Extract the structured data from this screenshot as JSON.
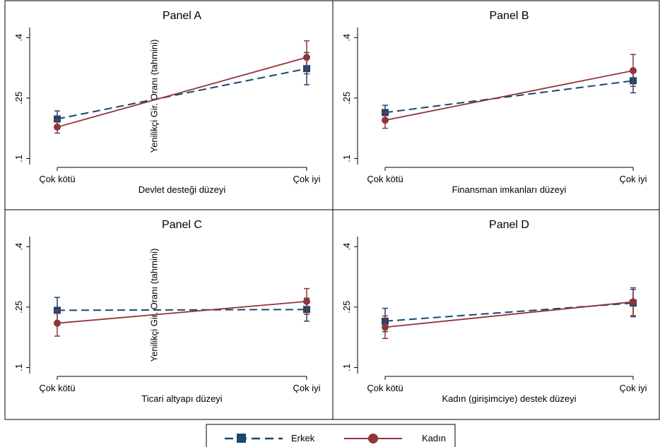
{
  "colors": {
    "erkek": "#1a476f",
    "kadin": "#90353b",
    "panel_border": "#000000",
    "axis": "#000000"
  },
  "legend": {
    "placement": "bottom-center",
    "items": [
      {
        "label": "Erkek",
        "color": "#1a476f",
        "line": "dashed",
        "marker": "square"
      },
      {
        "label": "Kadın",
        "color": "#90353b",
        "line": "solid",
        "marker": "circle"
      }
    ]
  },
  "chart_data": [
    {
      "type": "line",
      "title": "Panel A",
      "xlabel": "Devlet desteği düzeyi",
      "ylabel": "Yenilikçi Gir. Oranı (tahmini)",
      "categories": [
        "Çok kötü",
        "Çok iyi"
      ],
      "yticks": [
        ".1",
        ".25",
        ".4"
      ],
      "ytick_values": [
        0.1,
        0.25,
        0.4
      ],
      "ylim": [
        0.085,
        0.425
      ],
      "series": [
        {
          "name": "Erkek",
          "values": [
            0.198,
            0.323
          ],
          "ci_low": [
            0.18,
            0.283
          ],
          "ci_high": [
            0.218,
            0.363
          ]
        },
        {
          "name": "Kadın",
          "values": [
            0.178,
            0.351
          ],
          "ci_low": [
            0.163,
            0.31
          ],
          "ci_high": [
            0.196,
            0.392
          ]
        }
      ]
    },
    {
      "type": "line",
      "title": "Panel B",
      "xlabel": "Finansman imkanları düzeyi",
      "ylabel": "",
      "categories": [
        "Çok kötü",
        "Çok iyi"
      ],
      "yticks": [
        ".1",
        ".25",
        ".4"
      ],
      "ytick_values": [
        0.1,
        0.25,
        0.4
      ],
      "ylim": [
        0.085,
        0.425
      ],
      "series": [
        {
          "name": "Erkek",
          "values": [
            0.214,
            0.293
          ],
          "ci_low": [
            0.197,
            0.263
          ],
          "ci_high": [
            0.232,
            0.323
          ]
        },
        {
          "name": "Kadın",
          "values": [
            0.195,
            0.318
          ],
          "ci_low": [
            0.175,
            0.279
          ],
          "ci_high": [
            0.215,
            0.358
          ]
        }
      ]
    },
    {
      "type": "line",
      "title": "Panel C",
      "xlabel": "Ticari altyapı düzeyi",
      "ylabel": "Yenilikçi Gir. Oranı (tahmini)",
      "categories": [
        "Çok kötü",
        "Çok iyi"
      ],
      "yticks": [
        ".1",
        ".25",
        ".4"
      ],
      "ytick_values": [
        0.1,
        0.25,
        0.4
      ],
      "ylim": [
        0.085,
        0.425
      ],
      "series": [
        {
          "name": "Erkek",
          "values": [
            0.242,
            0.244
          ],
          "ci_low": [
            0.211,
            0.215
          ],
          "ci_high": [
            0.274,
            0.272
          ]
        },
        {
          "name": "Kadın",
          "values": [
            0.21,
            0.264
          ],
          "ci_low": [
            0.178,
            0.232
          ],
          "ci_high": [
            0.241,
            0.296
          ]
        }
      ]
    },
    {
      "type": "line",
      "title": "Panel D",
      "xlabel": "Kadın (girişimciye) destek düzeyi",
      "ylabel": "",
      "categories": [
        "Çok kötü",
        "Çok iyi"
      ],
      "yticks": [
        ".1",
        ".25",
        ".4"
      ],
      "ytick_values": [
        0.1,
        0.25,
        0.4
      ],
      "ylim": [
        0.085,
        0.425
      ],
      "series": [
        {
          "name": "Erkek",
          "values": [
            0.215,
            0.26
          ],
          "ci_low": [
            0.189,
            0.226
          ],
          "ci_high": [
            0.247,
            0.294
          ]
        },
        {
          "name": "Kadın",
          "values": [
            0.2,
            0.263
          ],
          "ci_low": [
            0.172,
            0.229
          ],
          "ci_high": [
            0.228,
            0.298
          ]
        }
      ]
    }
  ]
}
